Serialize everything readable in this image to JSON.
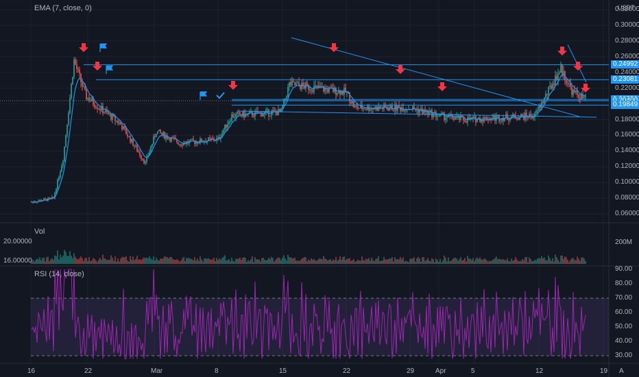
{
  "main_pane": {
    "indicator_title": "EMA (7, close, 0)",
    "unit": "USDT",
    "price_ticks": [
      "0.32000",
      "0.30000",
      "0.28000",
      "0.26000",
      "0.24000",
      "0.22000",
      "0.20000",
      "0.18000",
      "0.16000",
      "0.14000",
      "0.12000",
      "0.10000",
      "0.08000",
      "0.06000"
    ],
    "price_badges": [
      "0.24992",
      "0.23081",
      "0.20559",
      "0.20400",
      "0.19849"
    ]
  },
  "volume_pane": {
    "title": "Vol",
    "left_ticks": [
      "20.00000",
      "16.00000"
    ],
    "right_tick": "200M"
  },
  "rsi_pane": {
    "title": "RSI (14, close)",
    "ticks": [
      "90.00",
      "80.00",
      "70.00",
      "60.00",
      "50.00",
      "40.00",
      "30.00"
    ]
  },
  "time_axis": {
    "labels": [
      "16",
      "22",
      "Mar",
      "8",
      "15",
      "22",
      "29",
      "Apr",
      "5",
      "12",
      "19"
    ],
    "auto_label": "A"
  },
  "colors": {
    "background": "#131722",
    "up": "#26a69a",
    "down": "#ef5350",
    "ema": "#2196f3",
    "trendline": "#2196f3",
    "rsi": "#9c27b0",
    "rsi_band": "#7e57c2",
    "arrow": "#f23645"
  },
  "icons": [
    "down-arrow-signal-icon",
    "flag-icon",
    "checkmark-icon"
  ],
  "chart_data": {
    "type": "candlestick",
    "symbol_unit": "USDT",
    "price_range": [
      0.05,
      0.32
    ],
    "horizontal_levels": [
      0.24992,
      0.23081,
      0.20559,
      0.204,
      0.19849
    ],
    "ema_period": 7,
    "rsi_period": 14,
    "rsi_bands": [
      30,
      70
    ],
    "rsi_range": [
      25,
      95
    ],
    "x_labels": [
      "16",
      "22",
      "Mar",
      "8",
      "15",
      "22",
      "29",
      "Apr",
      "5",
      "12",
      "19"
    ],
    "close_path": [
      {
        "x": "Feb 16",
        "y": 0.075
      },
      {
        "x": "Feb 19",
        "y": 0.08
      },
      {
        "x": "Feb 20",
        "y": 0.13
      },
      {
        "x": "Feb 21",
        "y": 0.255
      },
      {
        "x": "Feb 22",
        "y": 0.21
      },
      {
        "x": "Feb 24",
        "y": 0.195
      },
      {
        "x": "Feb 26",
        "y": 0.175
      },
      {
        "x": "Feb 28",
        "y": 0.125
      },
      {
        "x": "Mar 1",
        "y": 0.165
      },
      {
        "x": "Mar 4",
        "y": 0.15
      },
      {
        "x": "Mar 8",
        "y": 0.155
      },
      {
        "x": "Mar 9",
        "y": 0.185
      },
      {
        "x": "Mar 14",
        "y": 0.19
      },
      {
        "x": "Mar 15",
        "y": 0.225
      },
      {
        "x": "Mar 22",
        "y": 0.215
      },
      {
        "x": "Mar 23",
        "y": 0.195
      },
      {
        "x": "Mar 29",
        "y": 0.195
      },
      {
        "x": "Apr 3",
        "y": 0.185
      },
      {
        "x": "Apr 8",
        "y": 0.18
      },
      {
        "x": "Apr 12",
        "y": 0.185
      },
      {
        "x": "Apr 13",
        "y": 0.245
      },
      {
        "x": "Apr 15",
        "y": 0.215
      },
      {
        "x": "Apr 16",
        "y": 0.205
      }
    ]
  }
}
